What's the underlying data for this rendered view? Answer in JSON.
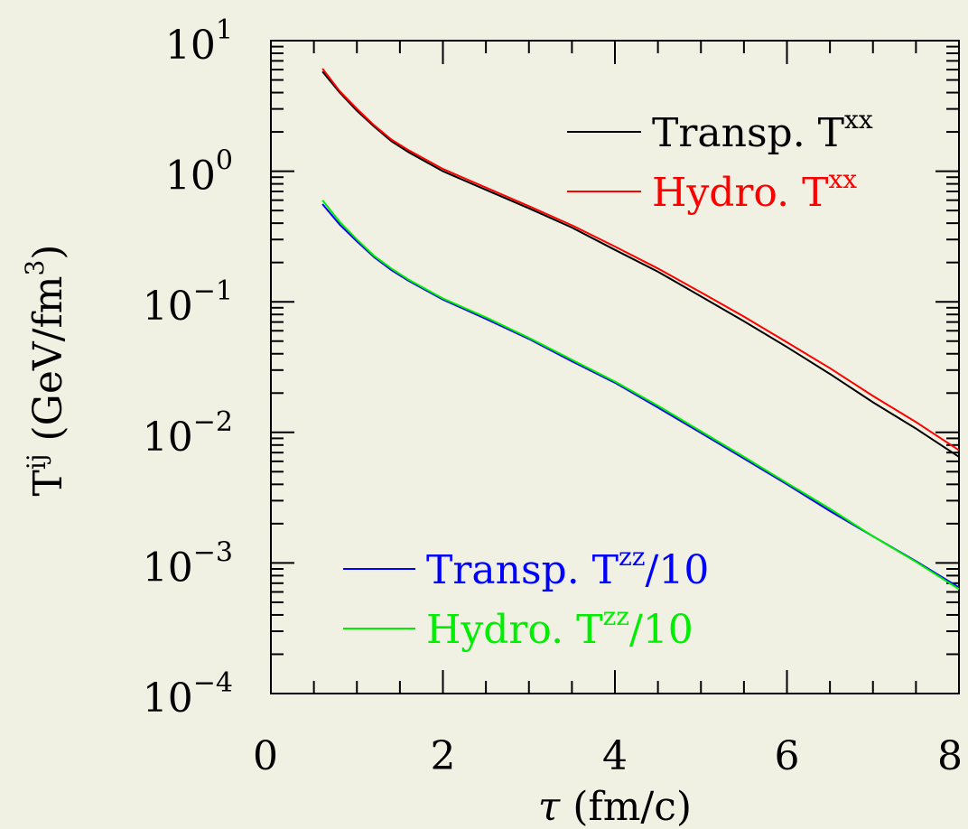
{
  "chart_data": {
    "type": "line",
    "xlabel": "τ (fm/c)",
    "ylabel": "T^ij (GeV/fm^3)",
    "xlabel_parts": {
      "sym": "τ",
      "unit": "(fm/c)"
    },
    "ylabel_parts": {
      "base": "T",
      "sup": "ij",
      "unit_open": "(GeV/fm",
      "unit_sup": "3",
      "unit_close": ")"
    },
    "xlim": [
      0,
      8
    ],
    "ylim": [
      0.0001,
      10
    ],
    "y_scale": "log",
    "x_ticks": [
      "0",
      "2",
      "4",
      "6",
      "8"
    ],
    "y_ticks": [
      {
        "base": "10",
        "exp": "1"
      },
      {
        "base": "10",
        "exp": "0"
      },
      {
        "base": "10",
        "exp": "−1"
      },
      {
        "base": "10",
        "exp": "−2"
      },
      {
        "base": "10",
        "exp": "−3"
      },
      {
        "base": "10",
        "exp": "−4"
      }
    ],
    "grid": false,
    "series": [
      {
        "name": "Transp. T^xx",
        "label_parts": {
          "text": "Transp. T",
          "sup": "xx",
          "suffix": ""
        },
        "color": "#000000",
        "legend_position": "upper-right",
        "x": [
          0.6,
          0.8,
          1.0,
          1.2,
          1.4,
          1.6,
          2.0,
          2.5,
          3.0,
          3.5,
          4.0,
          4.5,
          5.0,
          5.5,
          6.0,
          6.5,
          7.0,
          7.5,
          8.0
        ],
        "y": [
          5.8,
          4.0,
          2.9,
          2.2,
          1.7,
          1.4,
          1.0,
          0.72,
          0.52,
          0.37,
          0.25,
          0.17,
          0.11,
          0.071,
          0.045,
          0.028,
          0.017,
          0.0107,
          0.0065
        ]
      },
      {
        "name": "Hydro. T^xx",
        "label_parts": {
          "text": "Hydro. T",
          "sup": "xx",
          "suffix": ""
        },
        "color": "#ff0000",
        "legend_position": "upper-right",
        "x": [
          0.6,
          0.8,
          1.0,
          1.2,
          1.4,
          1.6,
          2.0,
          2.5,
          3.0,
          3.5,
          4.0,
          4.5,
          5.0,
          5.5,
          6.0,
          6.5,
          7.0,
          7.5,
          8.0
        ],
        "y": [
          6.1,
          4.1,
          3.0,
          2.25,
          1.75,
          1.45,
          1.04,
          0.75,
          0.54,
          0.385,
          0.265,
          0.18,
          0.118,
          0.077,
          0.049,
          0.031,
          0.019,
          0.012,
          0.0073
        ]
      },
      {
        "name": "Transp. T^zz/10",
        "label_parts": {
          "text": "Transp. T",
          "sup": "zz",
          "suffix": "/10"
        },
        "color": "#0000ff",
        "legend_position": "lower-left",
        "x": [
          0.6,
          0.8,
          1.0,
          1.2,
          1.4,
          1.6,
          2.0,
          2.5,
          3.0,
          3.5,
          4.0,
          4.5,
          5.0,
          5.5,
          6.0,
          6.5,
          7.0,
          7.5,
          8.0
        ],
        "y": [
          0.56,
          0.39,
          0.29,
          0.22,
          0.175,
          0.145,
          0.104,
          0.074,
          0.052,
          0.035,
          0.024,
          0.0155,
          0.0099,
          0.0063,
          0.004,
          0.0025,
          0.0016,
          0.00103,
          0.00065
        ]
      },
      {
        "name": "Hydro. T^zz/10",
        "label_parts": {
          "text": "Hydro. T",
          "sup": "zz",
          "suffix": "/10"
        },
        "color": "#00ee00",
        "legend_position": "lower-left",
        "x": [
          0.6,
          0.8,
          1.0,
          1.2,
          1.4,
          1.6,
          2.0,
          2.5,
          3.0,
          3.5,
          4.0,
          4.5,
          5.0,
          5.5,
          6.0,
          6.5,
          7.0,
          7.5,
          8.0
        ],
        "y": [
          0.6,
          0.41,
          0.3,
          0.225,
          0.18,
          0.148,
          0.106,
          0.076,
          0.053,
          0.036,
          0.0245,
          0.016,
          0.0102,
          0.0065,
          0.0041,
          0.0026,
          0.0016,
          0.00102,
          0.00063
        ]
      }
    ]
  }
}
